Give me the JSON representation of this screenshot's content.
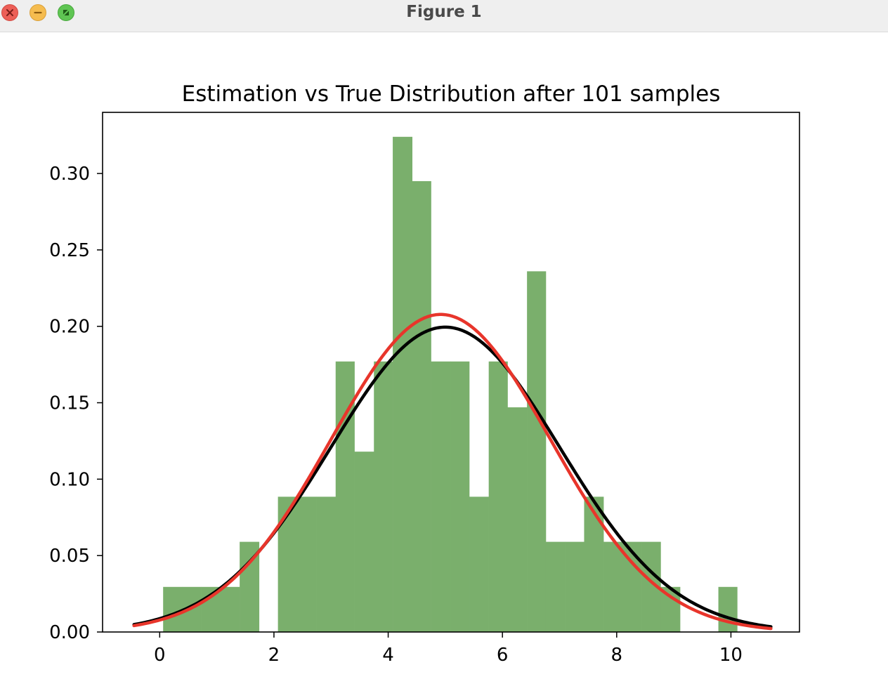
{
  "window": {
    "title": "Figure 1",
    "controls": [
      "close-icon",
      "minimize-icon",
      "zoom-icon"
    ]
  },
  "chart_data": {
    "type": "bar",
    "title": "Estimation vs True Distribution after 101 samples",
    "xlabel": "",
    "ylabel": "",
    "xlim": [
      -1.0,
      11.2
    ],
    "ylim": [
      0,
      0.34
    ],
    "xticks": [
      0,
      2,
      4,
      6,
      8,
      10
    ],
    "yticks": [
      "0.00",
      "0.05",
      "0.10",
      "0.15",
      "0.20",
      "0.25",
      "0.30"
    ],
    "grid": false,
    "legend": "none",
    "histogram": {
      "color": "#7aaf6c",
      "bin_edges": [
        0.06,
        0.4,
        0.73,
        1.07,
        1.4,
        1.74,
        2.07,
        2.41,
        2.74,
        3.08,
        3.41,
        3.75,
        4.08,
        4.42,
        4.75,
        5.09,
        5.42,
        5.76,
        6.09,
        6.43,
        6.76,
        7.1,
        7.43,
        7.77,
        8.1,
        8.44,
        8.77,
        9.11,
        9.44,
        9.78,
        10.11
      ],
      "densities": [
        0.0295,
        0.0295,
        0.0295,
        0.0295,
        0.059,
        0,
        0.0885,
        0.0885,
        0.0885,
        0.177,
        0.118,
        0.177,
        0.324,
        0.295,
        0.177,
        0.177,
        0.0885,
        0.177,
        0.147,
        0.236,
        0.059,
        0.059,
        0.0885,
        0.059,
        0.059,
        0.059,
        0.0295,
        0,
        0,
        0.0295
      ]
    },
    "series": [
      {
        "color": "#000000",
        "type": "line",
        "mean": 5.0,
        "std": 2.0,
        "x_range": [
          -0.45,
          10.7
        ]
      },
      {
        "color": "#e8352b",
        "type": "line",
        "mean": 4.92,
        "std": 1.92,
        "x_range": [
          -0.45,
          10.7
        ]
      }
    ]
  }
}
